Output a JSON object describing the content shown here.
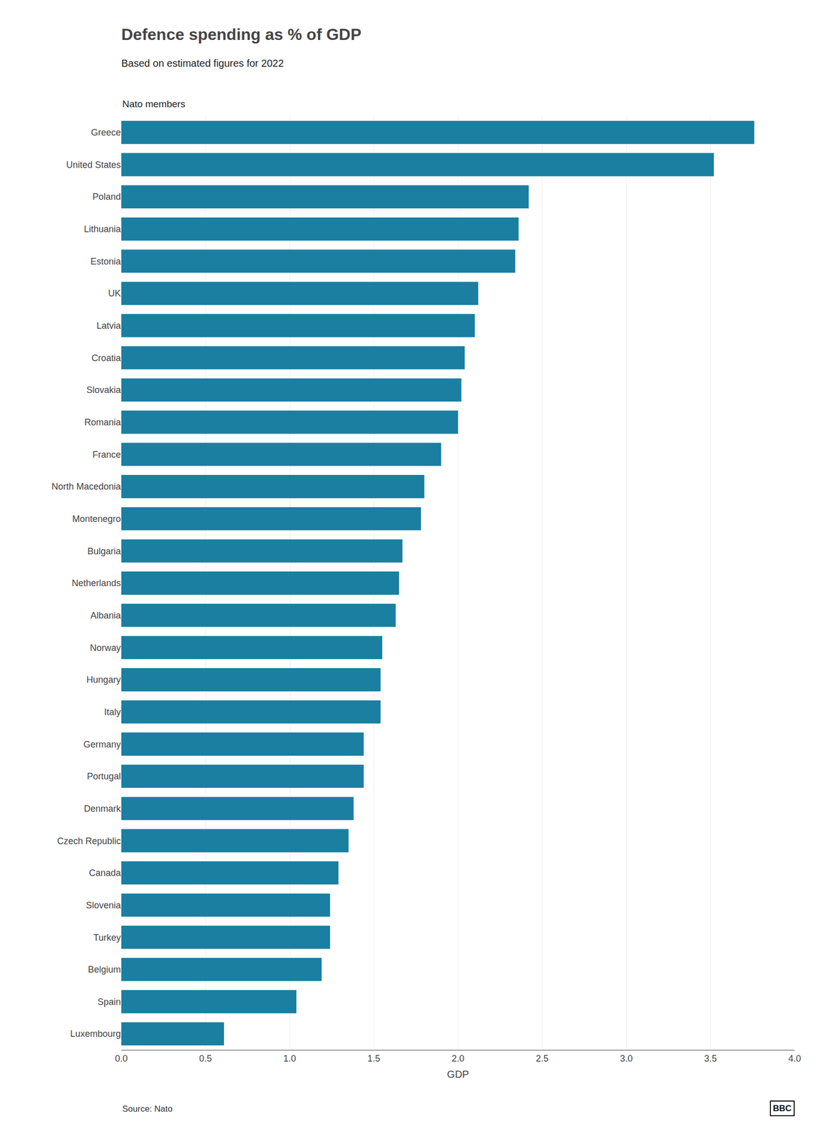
{
  "chart_data": {
    "type": "bar",
    "orientation": "horizontal",
    "title": "Defence spending as % of GDP",
    "subtitle": "Based on estimated figures for 2022",
    "annotations": [
      "Nato members",
      "Source: Nato",
      "BBC"
    ],
    "xlabel": "GDP",
    "categories": [
      "Greece",
      "United States",
      "Poland",
      "Lithuania",
      "Estonia",
      "UK",
      "Latvia",
      "Croatia",
      "Slovakia",
      "Romania",
      "France",
      "North Macedonia",
      "Montenegro",
      "Bulgaria",
      "Netherlands",
      "Albania",
      "Norway",
      "Hungary",
      "Italy",
      "Germany",
      "Portugal",
      "Denmark",
      "Czech Republic",
      "Canada",
      "Slovenia",
      "Turkey",
      "Belgium",
      "Spain",
      "Luxembourg"
    ],
    "values": [
      3.76,
      3.52,
      2.42,
      2.36,
      2.34,
      2.12,
      2.1,
      2.04,
      2.02,
      2.0,
      1.9,
      1.8,
      1.78,
      1.67,
      1.65,
      1.63,
      1.55,
      1.54,
      1.54,
      1.44,
      1.44,
      1.38,
      1.35,
      1.29,
      1.24,
      1.24,
      1.19,
      1.04,
      0.61
    ],
    "color": "#1a7fa0",
    "xlim": [
      0,
      4.0
    ],
    "xticks": [
      {
        "value": 0.0,
        "label": "0.0"
      },
      0.5,
      {
        "value": 1.0,
        "label": "1.0"
      },
      1.5,
      {
        "value": 2.0,
        "label": "2.0"
      },
      2.5,
      {
        "value": 3.0,
        "label": "3.0"
      },
      3.5,
      {
        "value": 4.0,
        "label": "4.0"
      }
    ],
    "grid": true
  }
}
